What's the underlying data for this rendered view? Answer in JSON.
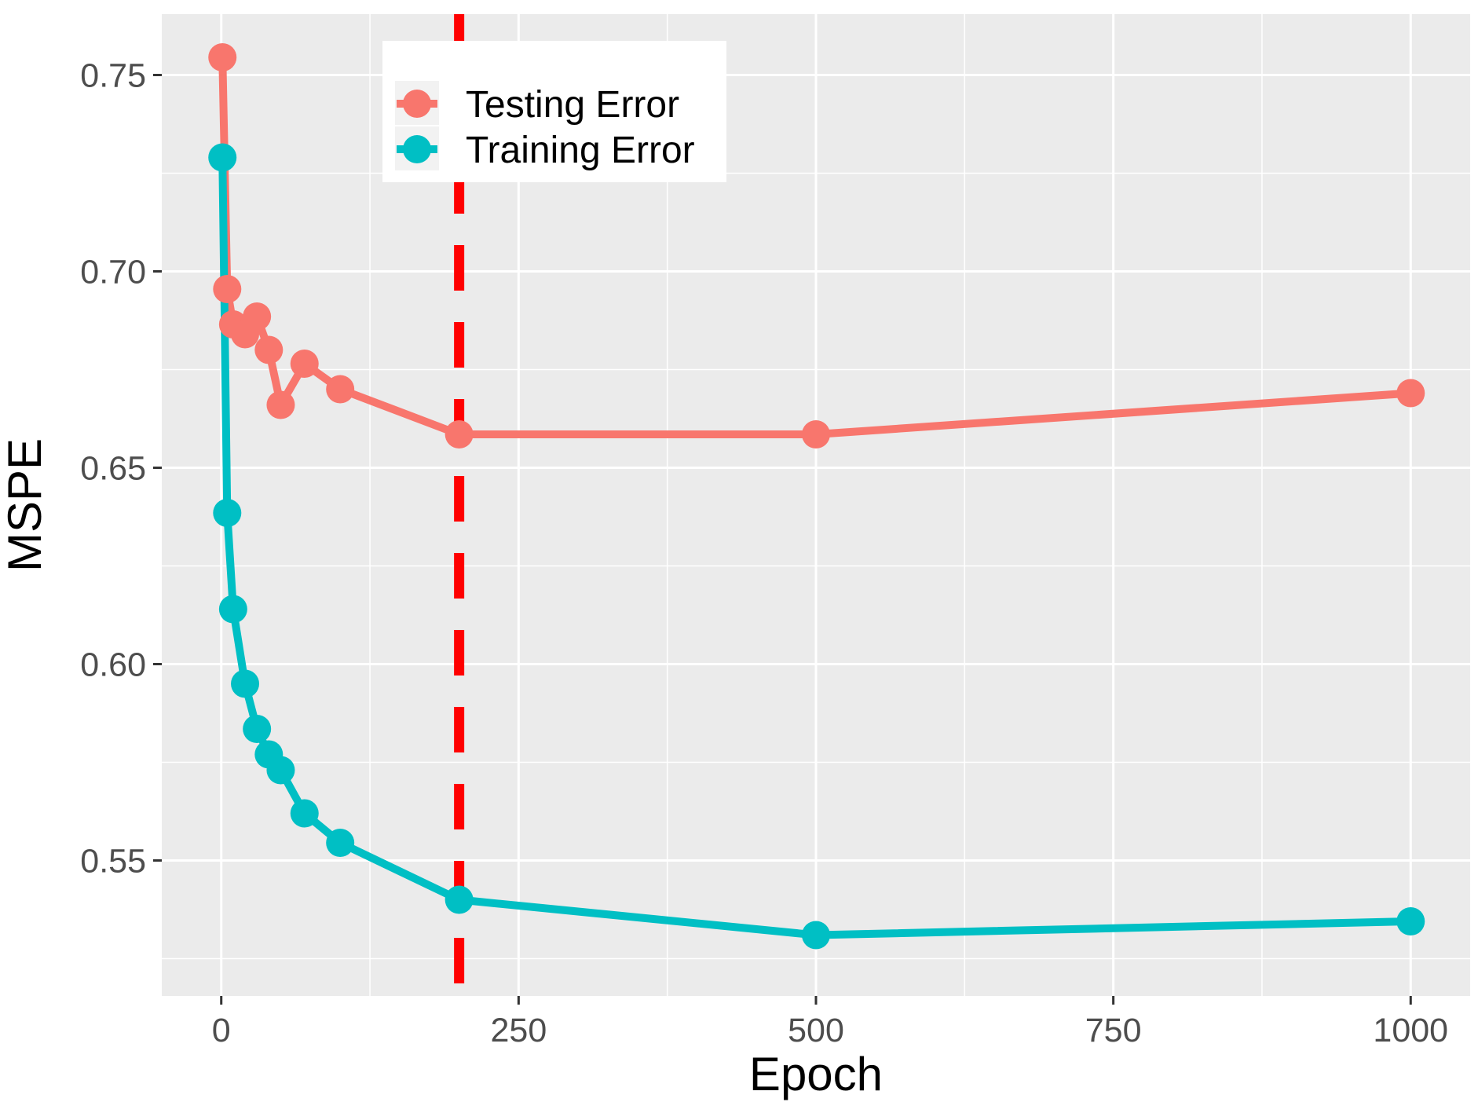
{
  "chart_data": {
    "type": "line",
    "xlabel": "Epoch",
    "ylabel": "MSPE",
    "xlim": [
      -50,
      1050
    ],
    "ylim": [
      0.5155,
      0.7655
    ],
    "x_ticks": [
      0,
      250,
      500,
      750,
      1000
    ],
    "x_tick_labels": [
      "0",
      "250",
      "500",
      "750",
      "1000"
    ],
    "y_ticks": [
      0.55,
      0.6,
      0.65,
      0.7,
      0.75
    ],
    "y_tick_labels": [
      "0.55",
      "0.60",
      "0.65",
      "0.70",
      "0.75"
    ],
    "grid": true,
    "legend_position": "top-left",
    "reference_line": {
      "axis": "x",
      "value": 200,
      "style": "dashed",
      "color": "#ff0000"
    },
    "series": [
      {
        "name": "Testing Error",
        "color": "#F8766D",
        "x": [
          1,
          5,
          10,
          20,
          30,
          40,
          50,
          70,
          100,
          200,
          500,
          1000
        ],
        "y": [
          0.7545,
          0.6955,
          0.6865,
          0.684,
          0.6885,
          0.68,
          0.666,
          0.6765,
          0.67,
          0.6585,
          0.6585,
          0.669
        ]
      },
      {
        "name": "Training Error",
        "color": "#00BFC4",
        "x": [
          1,
          5,
          10,
          20,
          30,
          40,
          50,
          70,
          100,
          200,
          500,
          1000
        ],
        "y": [
          0.729,
          0.6385,
          0.614,
          0.595,
          0.5835,
          0.577,
          0.573,
          0.562,
          0.5545,
          0.54,
          0.531,
          0.5345
        ]
      }
    ]
  }
}
